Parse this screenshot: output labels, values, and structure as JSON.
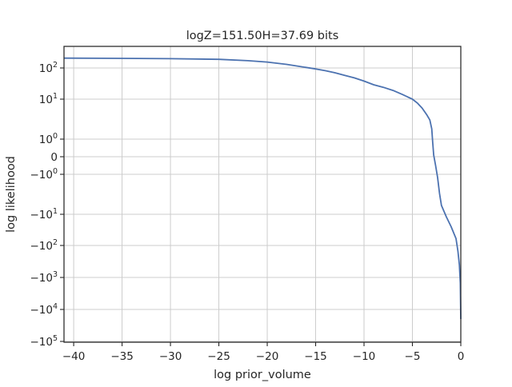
{
  "chart_data": {
    "type": "line",
    "title": "logZ=151.50H=37.69 bits",
    "xlabel": "log prior_volume",
    "ylabel": "log likelihood",
    "xlim": [
      -41,
      0
    ],
    "y_scale": "symlog",
    "grid": true,
    "line_color": "#4c72b0",
    "x_ticks": [
      {
        "value": -40,
        "label": "−40"
      },
      {
        "value": -35,
        "label": "−35"
      },
      {
        "value": -30,
        "label": "−30"
      },
      {
        "value": -25,
        "label": "−25"
      },
      {
        "value": -20,
        "label": "−20"
      },
      {
        "value": -15,
        "label": "−15"
      },
      {
        "value": -10,
        "label": "−10"
      },
      {
        "value": -5,
        "label": "−5"
      },
      {
        "value": 0,
        "label": "0"
      }
    ],
    "y_ticks": [
      {
        "value": 100,
        "base": "10",
        "exp": "2"
      },
      {
        "value": 10,
        "base": "10",
        "exp": "1"
      },
      {
        "value": 1,
        "base": "10",
        "exp": "0"
      },
      {
        "value": 0,
        "base": "0",
        "exp": ""
      },
      {
        "value": -1,
        "base": "−10",
        "exp": "0"
      },
      {
        "value": -10,
        "base": "−10",
        "exp": "1"
      },
      {
        "value": -100,
        "base": "−10",
        "exp": "2"
      },
      {
        "value": -1000,
        "base": "−10",
        "exp": "3"
      },
      {
        "value": -10000,
        "base": "−10",
        "exp": "4"
      },
      {
        "value": -100000,
        "base": "−10",
        "exp": "5"
      }
    ],
    "series": [
      {
        "x": [
          -41,
          -35,
          -30,
          -25,
          -22,
          -20,
          -18,
          -16,
          -15,
          -14,
          -13,
          -12,
          -11,
          -10,
          -9,
          -8,
          -7,
          -6,
          -5,
          -4.5,
          -4,
          -3.5,
          -3.2,
          -3.0,
          -2.9,
          -2.8,
          -2.6,
          -2.4,
          -2.2,
          -2.0,
          -1.5,
          -1.0,
          -0.5,
          -0.3,
          -0.15,
          -0.05,
          0
        ],
        "y": [
          165,
          163,
          160,
          155,
          145,
          135,
          120,
          103,
          93,
          82,
          70,
          58,
          48,
          38,
          29,
          24,
          19,
          14,
          10,
          8,
          6,
          4,
          3,
          1.8,
          0.8,
          0.1,
          -0.5,
          -1.2,
          -3,
          -6,
          -12,
          -25,
          -60,
          -150,
          -400,
          -1500,
          -20000
        ]
      }
    ]
  }
}
